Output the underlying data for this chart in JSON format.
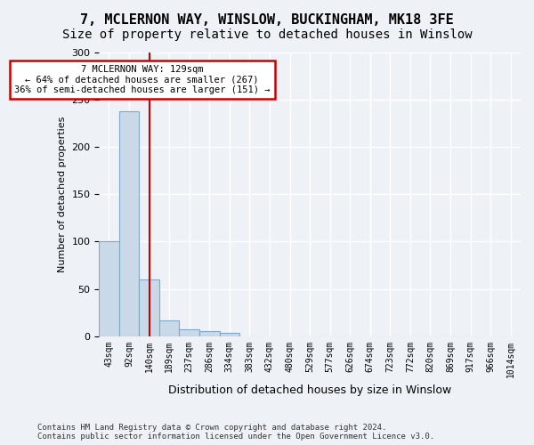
{
  "title1": "7, MCLERNON WAY, WINSLOW, BUCKINGHAM, MK18 3FE",
  "title2": "Size of property relative to detached houses in Winslow",
  "xlabel": "Distribution of detached houses by size in Winslow",
  "ylabel": "Number of detached properties",
  "footnote": "Contains HM Land Registry data © Crown copyright and database right 2024.\nContains public sector information licensed under the Open Government Licence v3.0.",
  "bin_labels": [
    "43sqm",
    "92sqm",
    "140sqm",
    "189sqm",
    "237sqm",
    "286sqm",
    "334sqm",
    "383sqm",
    "432sqm",
    "480sqm",
    "529sqm",
    "577sqm",
    "626sqm",
    "674sqm",
    "723sqm",
    "772sqm",
    "820sqm",
    "869sqm",
    "917sqm",
    "966sqm",
    "1014sqm"
  ],
  "bar_heights": [
    100,
    238,
    60,
    17,
    7,
    5,
    3,
    0,
    0,
    0,
    0,
    0,
    0,
    0,
    0,
    0,
    0,
    0,
    0,
    0,
    0
  ],
  "bar_color": "#c9d9e8",
  "bar_edge_color": "#7fa8c9",
  "property_line_x": 2,
  "property_line_label": "7 MCLERNON WAY: 129sqm",
  "annotation_line2": "← 64% of detached houses are smaller (267)",
  "annotation_line3": "36% of semi-detached houses are larger (151) →",
  "annotation_box_color": "#ffffff",
  "annotation_box_edge_color": "#cc0000",
  "property_line_color": "#cc0000",
  "ylim": [
    0,
    300
  ],
  "yticks": [
    0,
    50,
    100,
    150,
    200,
    250,
    300
  ],
  "background_color": "#eef2f7",
  "grid_color": "#ffffff",
  "title1_fontsize": 11,
  "title2_fontsize": 10
}
